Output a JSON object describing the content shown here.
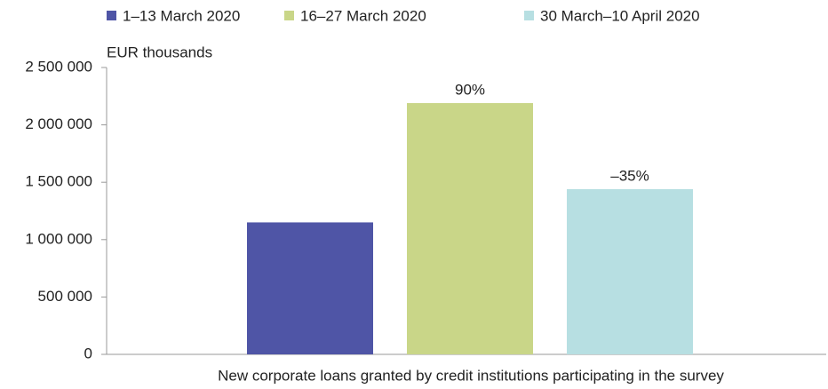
{
  "chart_data": {
    "type": "bar",
    "y_axis_label": "EUR thousands",
    "categories": [
      "New corporate loans granted by credit institutions participating in the survey"
    ],
    "series": [
      {
        "name": "1–13 March 2020",
        "color": "#4f55a6",
        "values": [
          1150000
        ]
      },
      {
        "name": "16–27 March 2020",
        "color": "#c9d688",
        "values": [
          2190000
        ],
        "change_label": "90%"
      },
      {
        "name": "30 March–10 April 2020",
        "color": "#b7dfe2",
        "values": [
          1440000
        ],
        "change_label": "–35%"
      }
    ],
    "ylim": [
      0,
      2500000
    ],
    "yticks": [
      0,
      {
        "value": 500000,
        "label": "500 000"
      },
      {
        "value": 1000000,
        "label": "1 000 000"
      },
      {
        "value": 1500000,
        "label": "1 500 000"
      },
      {
        "value": 2000000,
        "label": "2 000 000"
      },
      {
        "value": 2500000,
        "label": "2 500 000"
      }
    ],
    "grid": false,
    "legend": "top"
  }
}
